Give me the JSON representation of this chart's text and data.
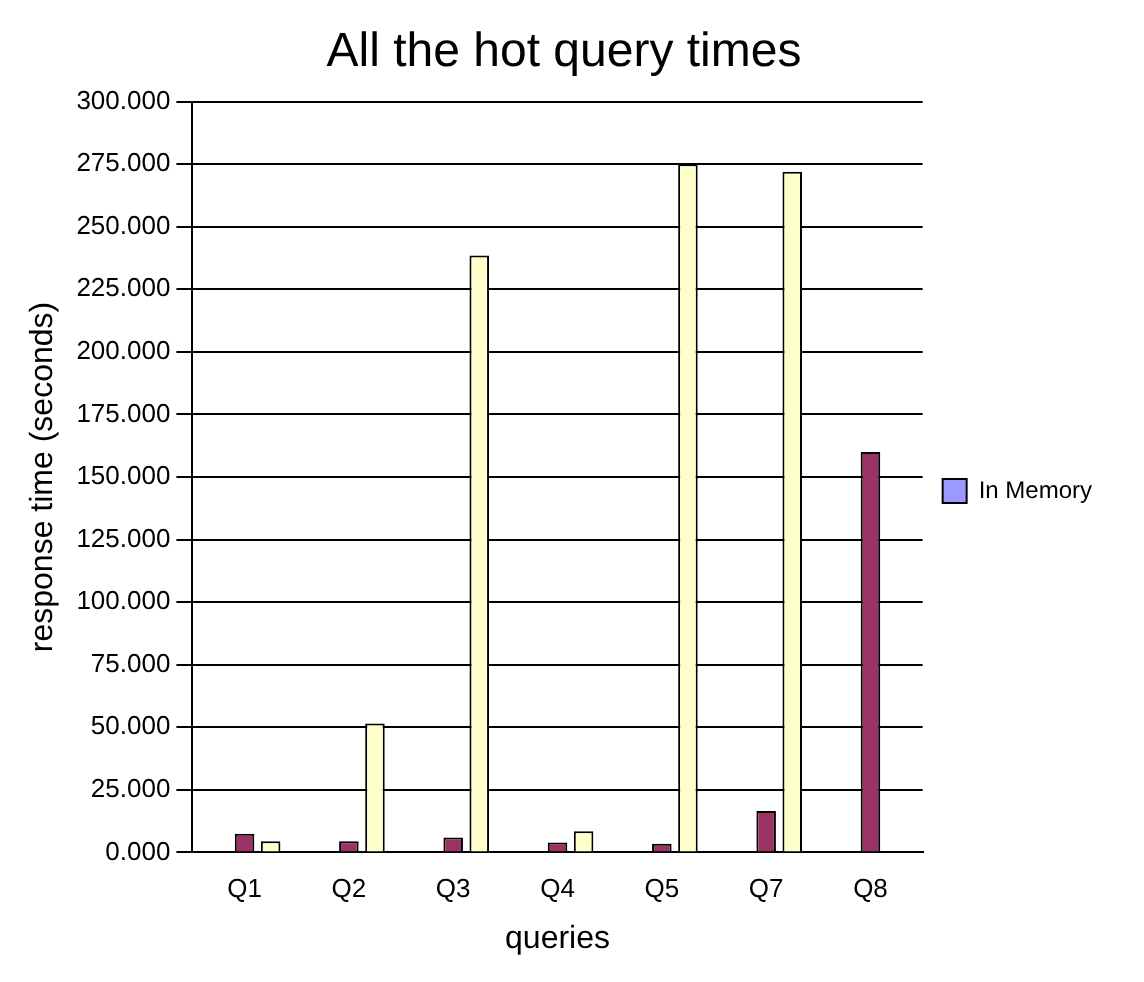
{
  "chart_data": {
    "type": "bar",
    "title": "All the hot query times",
    "xlabel": "queries",
    "ylabel": "response time (seconds)",
    "categories": [
      "Q1",
      "Q2",
      "Q3",
      "Q4",
      "Q5",
      "Q7",
      "Q8"
    ],
    "series": [
      {
        "name": "In Memory",
        "color": "#9999ff",
        "values": [
          0,
          0,
          0,
          0,
          0,
          0,
          0
        ]
      },
      {
        "color": "#993366",
        "values": [
          7.5,
          4.5,
          6,
          4,
          3.5,
          16.5,
          160
        ]
      },
      {
        "color": "#ffffcc",
        "values": [
          4.5,
          51.5,
          238.5,
          8.5,
          275,
          272,
          0
        ]
      }
    ],
    "ylim": [
      0,
      300
    ],
    "yticks": [
      {
        "value": 0,
        "label": "0.000"
      },
      {
        "value": 25,
        "label": "25.000"
      },
      {
        "value": 50,
        "label": "50.000"
      },
      {
        "value": 75,
        "label": "75.000"
      },
      {
        "value": 100,
        "label": "100.000"
      },
      {
        "value": 125,
        "label": "125.000"
      },
      {
        "value": 150,
        "label": "150.000"
      },
      {
        "value": 175,
        "label": "175.000"
      },
      {
        "value": 200,
        "label": "200.000"
      },
      {
        "value": 225,
        "label": "225.000"
      },
      {
        "value": 250,
        "label": "250.000"
      },
      {
        "value": 275,
        "label": "275.000"
      },
      {
        "value": 300,
        "label": "300.000"
      }
    ],
    "grid": "y",
    "legend": "right"
  }
}
